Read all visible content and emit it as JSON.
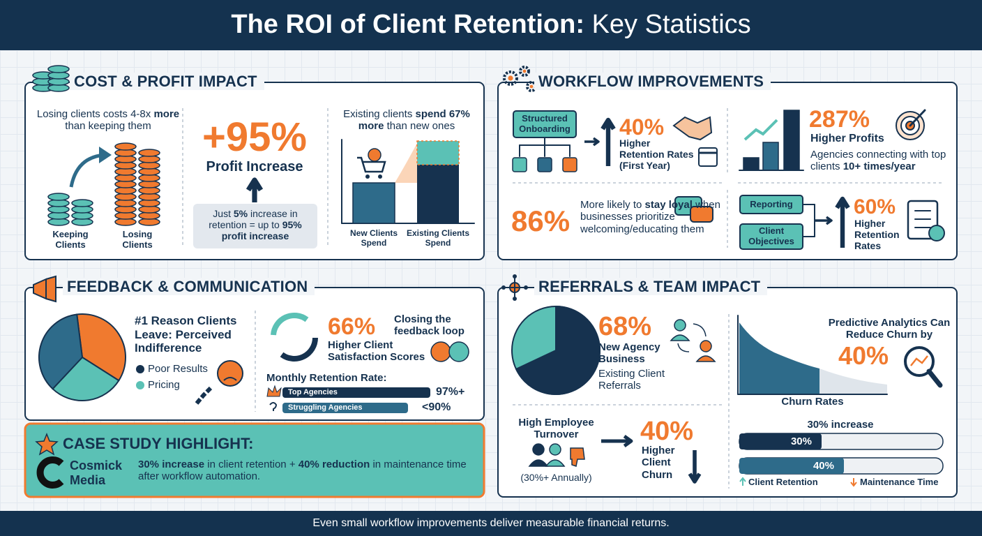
{
  "header": {
    "title_bold": "The ROI of Client Retention:",
    "title_light": "Key Statistics"
  },
  "cost_profit": {
    "heading": "COST & PROFIT IMPACT",
    "cost_text": [
      "Losing clients costs 4-8x",
      "more",
      "than keeping them"
    ],
    "labels": [
      "Keeping Clients",
      "Losing Clients"
    ],
    "profit_value": "+95%",
    "profit_label": "Profit Increase",
    "profit_note": [
      "Just",
      "5%",
      "increase in retention = up to",
      "95% profit increase"
    ],
    "spend_text": [
      "Existing clients",
      "spend 67%",
      "more",
      "than new ones"
    ],
    "spend_labels": [
      "New Clients Spend",
      "Existing Clients Spend"
    ]
  },
  "workflow": {
    "heading": "WORKFLOW IMPROVEMENTS",
    "onboarding": "Structured Onboarding",
    "onboarding_value": "40%",
    "onboarding_label": "Higher Retention Rates (First Year)",
    "profits_value": "287%",
    "profits_label": "Higher Profits",
    "profits_text": [
      "Agencies connecting with top clients",
      "10+ times/year"
    ],
    "loyal_value": "86%",
    "loyal_text": [
      "More likely to",
      "stay loyal",
      "when businesses prioritize welcoming/educating them"
    ],
    "reporting": "Reporting",
    "objectives": "Client Objectives",
    "reporting_value": "60%",
    "reporting_label": "Higher Retention Rates"
  },
  "feedback": {
    "heading": "FEEDBACK & COMMUNICATION",
    "reason": "#1 Reason Clients Leave: Perceived Indifference",
    "legend": [
      "Poor Results",
      "Pricing"
    ],
    "satisfaction_value": "66%",
    "loop": "Closing the feedback loop",
    "satisfaction_label": "Higher Client Satisfaction Scores",
    "retention_title": "Monthly Retention Rate:",
    "rates": [
      {
        "name": "Top Agencies",
        "value": "97%+"
      },
      {
        "name": "Struggling Agencies",
        "value": "<90%"
      }
    ]
  },
  "case_study": {
    "heading": "CASE STUDY HIGHLIGHT:",
    "company": "Cosmick Media",
    "text": [
      "30% increase",
      "in client retention +",
      "40% reduction",
      "in maintenance time after workflow automation."
    ]
  },
  "referrals": {
    "heading": "REFERRALS & TEAM IMPACT",
    "agency_value": {
      "value": 68,
      "label": "68%"
    },
    "agency_label": "New Agency Business",
    "agency_source": "Existing Client Referrals",
    "analytics_text": "Predictive Analytics Can Reduce Churn by",
    "analytics_value": "40%",
    "churn_label": "Churn Rates",
    "turnover": "High Employee Turnover",
    "turnover_note": "(30%+ Annually)",
    "churn_value": "40%",
    "churn_text": "Higher Client Churn",
    "bars_title": "30% increase",
    "bars": [
      "30%",
      "40%"
    ],
    "legend": [
      "Client Retention",
      "Maintenance Time"
    ]
  },
  "footer": "Even small workflow improvements deliver measurable financial returns."
}
